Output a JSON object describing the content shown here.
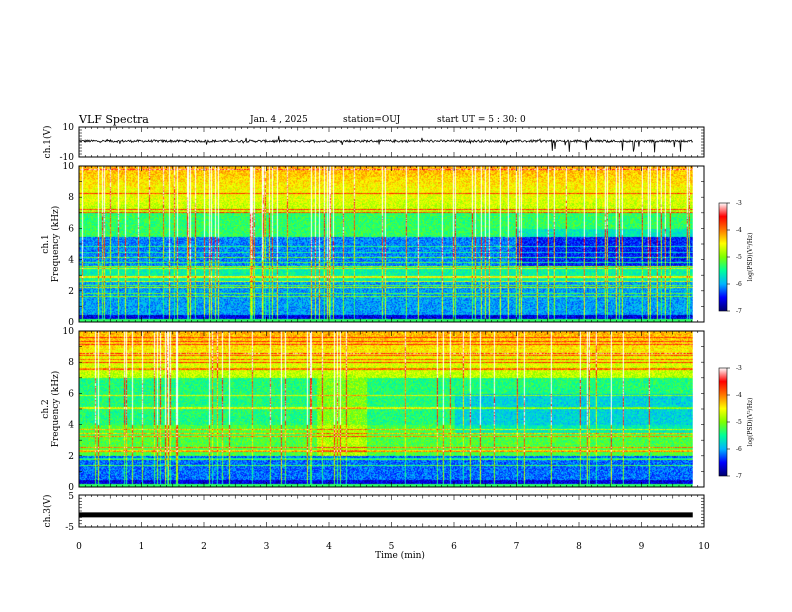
{
  "header": {
    "title": "VLF Spectra",
    "date": "Jan. 4 , 2025",
    "station": "station=OUJ",
    "start": "start UT =  5 : 30: 0"
  },
  "chart_data": [
    {
      "type": "line",
      "ylabel": "ch.1(V)",
      "ylim": [
        -10,
        10
      ],
      "yticks": [
        "10",
        "-10"
      ],
      "line_color": "#000000"
    },
    {
      "type": "heatmap",
      "ylabel_line1": "ch.1",
      "ylabel_line2": "Frequency (kHz)",
      "ylim": [
        0,
        10
      ],
      "yticks": [
        "0",
        "2",
        "4",
        "6",
        "8",
        "10"
      ],
      "colorbar": {
        "label": "log(PSD)(V²/Hz)",
        "range": [
          -7,
          -3
        ],
        "ticks": [
          "-3",
          "-4",
          "-5",
          "-6",
          "-7"
        ],
        "colors": [
          "#00006e",
          "#0000ff",
          "#00b4ff",
          "#00ff9a",
          "#7dff00",
          "#ffff00",
          "#ff7800",
          "#ff0000",
          "#ffffff"
        ]
      }
    },
    {
      "type": "heatmap",
      "ylabel_line1": "ch.2",
      "ylabel_line2": "Frequency (kHz)",
      "ylim": [
        0,
        10
      ],
      "yticks": [
        "0",
        "2",
        "4",
        "6",
        "8",
        "10"
      ],
      "colorbar": {
        "label": "log(PSD)(V²/Hz)",
        "range": [
          -7,
          -3
        ],
        "ticks": [
          "-3",
          "-4",
          "-5",
          "-6",
          "-7"
        ],
        "colors": [
          "#00006e",
          "#0000ff",
          "#00b4ff",
          "#00ff9a",
          "#7dff00",
          "#ffff00",
          "#ff7800",
          "#ff0000",
          "#ffffff"
        ]
      }
    },
    {
      "type": "line",
      "ylabel": "ch.3(V)",
      "ylim": [
        -5,
        5
      ],
      "yticks": [
        "5",
        "-5"
      ],
      "line_value": -1.2,
      "line_color": "#000000"
    }
  ],
  "xaxis": {
    "label": "Time (min)",
    "range": [
      0,
      10
    ],
    "ticks": [
      "0",
      "1",
      "2",
      "3",
      "4",
      "5",
      "6",
      "7",
      "8",
      "9",
      "10"
    ],
    "data_end": 9.82
  }
}
